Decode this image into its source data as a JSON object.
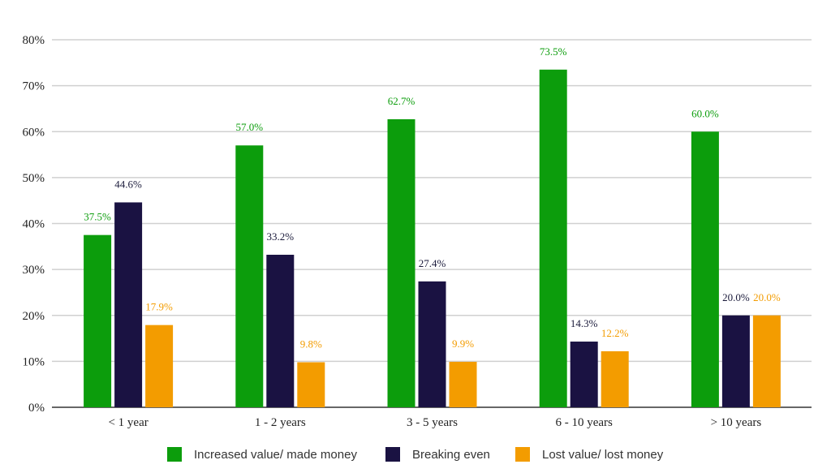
{
  "chart_data": {
    "type": "bar",
    "title": "",
    "xlabel": "",
    "ylabel": "",
    "ylim": [
      0,
      80
    ],
    "ytick_step": 10,
    "ytick_labels": [
      "0%",
      "10%",
      "20%",
      "30%",
      "40%",
      "50%",
      "60%",
      "70%",
      "80%"
    ],
    "grid": true,
    "legend_position": "bottom",
    "categories": [
      "< 1 year",
      "1 - 2 years",
      "3 - 5 years",
      "6 - 10 years",
      "> 10 years"
    ],
    "series": [
      {
        "name": "Increased value/ made money",
        "color": "#0c9d0c",
        "values": [
          37.5,
          57.0,
          62.7,
          73.5,
          60.0
        ],
        "labels": [
          "37.5%",
          "57.0%",
          "62.7%",
          "73.5%",
          "60.0%"
        ]
      },
      {
        "name": "Breaking even",
        "color": "#1a1242",
        "values": [
          44.6,
          33.2,
          27.4,
          14.3,
          20.0
        ],
        "labels": [
          "44.6%",
          "33.2%",
          "27.4%",
          "14.3%",
          "20.0%"
        ]
      },
      {
        "name": "Lost value/ lost money",
        "color": "#f39c00",
        "values": [
          17.9,
          9.8,
          9.9,
          12.2,
          20.0
        ],
        "labels": [
          "17.9%",
          "9.8%",
          "9.9%",
          "12.2%",
          "20.0%"
        ]
      }
    ]
  }
}
